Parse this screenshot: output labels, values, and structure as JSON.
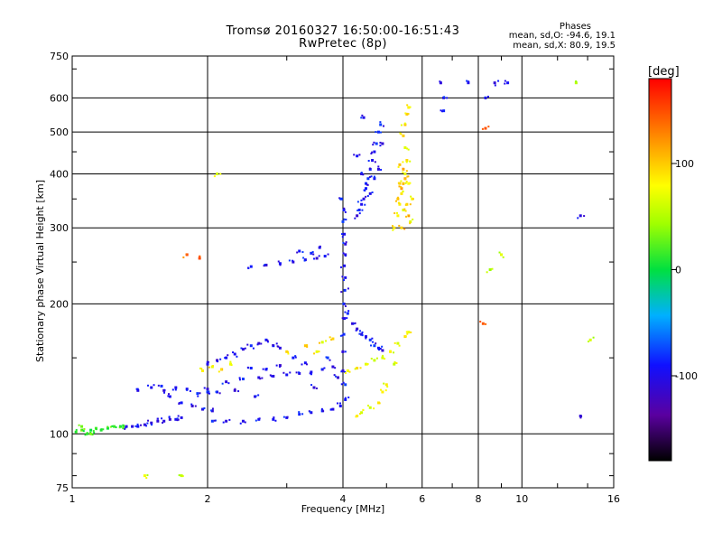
{
  "header": {
    "title": "Tromsø 20160327 16:50:00-16:51:43",
    "subtitle": "RwPretec (8p)"
  },
  "phase_stats": {
    "title": "Phases",
    "line1": "mean, sd,O: -94.6, 19.1",
    "line2": "mean, sd,X:  80.9, 19.5"
  },
  "colorbar": {
    "unit": "[deg]",
    "ticks": [
      "100",
      "0",
      "-100"
    ],
    "tick_values": [
      100,
      0,
      -100
    ],
    "range": [
      -180,
      180
    ]
  },
  "chart_data": {
    "type": "scatter",
    "title": "Tromsø 20160327 16:50:00-16:51:43",
    "subtitle": "RwPretec (8p)",
    "xlabel": "Frequency [MHz]",
    "ylabel": "Stationary phase Virtual Height [km]",
    "x_scale": "log",
    "y_scale": "log",
    "xlim": [
      1,
      16
    ],
    "ylim": [
      75,
      750
    ],
    "x_ticks": [
      "1",
      "2",
      "4",
      "6",
      "8",
      "10",
      "16"
    ],
    "x_tick_values": [
      1,
      2,
      4,
      6,
      8,
      10,
      16
    ],
    "y_ticks": [
      "750",
      "600",
      "500",
      "400",
      "300",
      "200",
      "100",
      "75"
    ],
    "y_tick_values": [
      750,
      600,
      500,
      400,
      300,
      200,
      100,
      75
    ],
    "grid": true,
    "color_encoding": "phase [deg]",
    "series": [
      {
        "points": [
          [
            1.02,
            101
          ],
          [
            1.05,
            102
          ],
          [
            1.08,
            100
          ],
          [
            1.1,
            102
          ],
          [
            1.13,
            103
          ],
          [
            1.16,
            102
          ],
          [
            1.2,
            103
          ],
          [
            1.24,
            104
          ],
          [
            1.28,
            104
          ],
          [
            1.3,
            104
          ],
          [
            1.05,
            104
          ],
          [
            1.1,
            100
          ]
        ],
        "phase": 20
      },
      {
        "points": [
          [
            1.32,
            104
          ],
          [
            1.36,
            104
          ],
          [
            1.4,
            104
          ],
          [
            1.45,
            105
          ],
          [
            1.5,
            106
          ],
          [
            1.55,
            107
          ],
          [
            1.6,
            107
          ],
          [
            1.65,
            108
          ],
          [
            1.7,
            108
          ],
          [
            1.75,
            109
          ]
        ],
        "phase": -95
      },
      {
        "points": [
          [
            1.6,
            126
          ],
          [
            1.7,
            128
          ],
          [
            1.8,
            127
          ],
          [
            1.9,
            124
          ],
          [
            2.0,
            125
          ],
          [
            2.1,
            125
          ],
          [
            1.75,
            118
          ],
          [
            1.85,
            116
          ],
          [
            1.95,
            114
          ],
          [
            2.05,
            113
          ],
          [
            1.65,
            122
          ],
          [
            1.58,
            129
          ],
          [
            1.5,
            128
          ],
          [
            1.4,
            126
          ]
        ],
        "phase": -95
      },
      {
        "points": [
          [
            2.05,
            107
          ],
          [
            2.2,
            107
          ],
          [
            2.4,
            107
          ],
          [
            2.6,
            108
          ],
          [
            2.8,
            108
          ],
          [
            3.0,
            109
          ],
          [
            3.2,
            111
          ],
          [
            3.4,
            112
          ],
          [
            3.6,
            113
          ],
          [
            3.8,
            114
          ],
          [
            3.95,
            116
          ]
        ],
        "phase": -95
      },
      {
        "points": [
          [
            2.0,
            127
          ],
          [
            2.2,
            132
          ],
          [
            2.4,
            134
          ],
          [
            2.6,
            135
          ],
          [
            2.8,
            136
          ],
          [
            3.0,
            137
          ],
          [
            3.2,
            138
          ],
          [
            3.4,
            139
          ],
          [
            3.6,
            141
          ],
          [
            3.8,
            143
          ],
          [
            2.5,
            142
          ],
          [
            2.9,
            144
          ],
          [
            3.3,
            146
          ],
          [
            3.7,
            150
          ],
          [
            3.1,
            150
          ],
          [
            2.7,
            141
          ],
          [
            2.3,
            126
          ],
          [
            2.55,
            122
          ],
          [
            3.45,
            128
          ],
          [
            3.9,
            135
          ]
        ],
        "phase": -95
      },
      {
        "points": [
          [
            2.0,
            145
          ],
          [
            2.1,
            148
          ],
          [
            2.2,
            150
          ],
          [
            2.3,
            153
          ],
          [
            2.4,
            157
          ],
          [
            2.5,
            160
          ],
          [
            2.6,
            162
          ],
          [
            2.7,
            165
          ],
          [
            2.8,
            160
          ],
          [
            2.9,
            158
          ]
        ],
        "phase": -100
      },
      {
        "points": [
          [
            1.95,
            140
          ],
          [
            2.05,
            143
          ],
          [
            2.15,
            141
          ],
          [
            2.25,
            145
          ],
          [
            3.0,
            155
          ],
          [
            3.3,
            160
          ],
          [
            3.6,
            163
          ],
          [
            3.8,
            166
          ],
          [
            3.5,
            155
          ]
        ],
        "phase": 85
      },
      {
        "points": [
          [
            2.5,
            244
          ],
          [
            2.7,
            246
          ],
          [
            2.9,
            248
          ],
          [
            3.1,
            250
          ],
          [
            3.3,
            253
          ],
          [
            3.5,
            255
          ],
          [
            3.65,
            258
          ],
          [
            3.4,
            262
          ],
          [
            3.2,
            265
          ],
          [
            3.55,
            270
          ]
        ],
        "phase": -95
      },
      {
        "points": [
          [
            4.0,
            140
          ],
          [
            4.0,
            155
          ],
          [
            4.02,
            170
          ],
          [
            4.03,
            185
          ],
          [
            4.02,
            200
          ],
          [
            4.04,
            215
          ],
          [
            4.05,
            230
          ],
          [
            4.03,
            245
          ],
          [
            4.05,
            260
          ],
          [
            4.05,
            275
          ],
          [
            4.03,
            290
          ],
          [
            4.0,
            310
          ],
          [
            4.02,
            330
          ],
          [
            3.97,
            350
          ],
          [
            4.05,
            130
          ],
          [
            4.05,
            120
          ],
          [
            4.1,
            190
          ],
          [
            4.2,
            180
          ],
          [
            4.3,
            175
          ],
          [
            4.4,
            170
          ],
          [
            4.5,
            168
          ],
          [
            4.6,
            165
          ],
          [
            4.7,
            160
          ],
          [
            4.8,
            158
          ],
          [
            4.9,
            156
          ]
        ],
        "phase": -95
      },
      {
        "points": [
          [
            4.3,
            320
          ],
          [
            4.35,
            330
          ],
          [
            4.4,
            340
          ],
          [
            4.45,
            350
          ],
          [
            4.5,
            370
          ],
          [
            4.55,
            390
          ],
          [
            4.6,
            410
          ],
          [
            4.65,
            430
          ],
          [
            4.7,
            450
          ],
          [
            4.75,
            470
          ],
          [
            4.8,
            500
          ],
          [
            4.85,
            520
          ],
          [
            4.4,
            400
          ],
          [
            4.5,
            380
          ],
          [
            4.6,
            360
          ],
          [
            4.7,
            390
          ],
          [
            4.8,
            410
          ],
          [
            4.3,
            440
          ],
          [
            4.45,
            540
          ],
          [
            4.9,
            470
          ]
        ],
        "phase": -95
      },
      {
        "points": [
          [
            4.1,
            140
          ],
          [
            4.3,
            142
          ],
          [
            4.5,
            145
          ],
          [
            4.7,
            148
          ],
          [
            4.9,
            150
          ],
          [
            5.1,
            155
          ],
          [
            5.3,
            162
          ],
          [
            5.5,
            168
          ],
          [
            5.6,
            172
          ],
          [
            4.3,
            110
          ],
          [
            4.4,
            112
          ],
          [
            4.6,
            115
          ],
          [
            4.8,
            118
          ],
          [
            4.9,
            125
          ],
          [
            5.0,
            130
          ],
          [
            5.2,
            145
          ]
        ],
        "phase": 75
      },
      {
        "points": [
          [
            5.2,
            300
          ],
          [
            5.3,
            320
          ],
          [
            5.35,
            340
          ],
          [
            5.4,
            360
          ],
          [
            5.45,
            380
          ],
          [
            5.5,
            400
          ],
          [
            5.55,
            430
          ],
          [
            5.5,
            460
          ],
          [
            5.45,
            490
          ],
          [
            5.5,
            520
          ],
          [
            5.55,
            550
          ],
          [
            5.6,
            570
          ],
          [
            5.45,
            330
          ],
          [
            5.6,
            380
          ],
          [
            5.65,
            310
          ],
          [
            5.35,
            420
          ],
          [
            5.7,
            350
          ]
        ],
        "phase": 85
      },
      {
        "points": [
          [
            5.3,
            350
          ],
          [
            5.4,
            370
          ],
          [
            5.5,
            390
          ],
          [
            5.45,
            410
          ],
          [
            5.55,
            340
          ],
          [
            5.6,
            320
          ],
          [
            5.4,
            300
          ],
          [
            5.35,
            380
          ]
        ],
        "phase": 110
      },
      {
        "points": [
          [
            6.6,
            650
          ],
          [
            6.7,
            600
          ],
          [
            6.7,
            560
          ],
          [
            7.6,
            650
          ],
          [
            8.7,
            650
          ],
          [
            8.3,
            600
          ],
          [
            9.3,
            650
          ],
          [
            13.5,
            320
          ],
          [
            13.5,
            110
          ]
        ],
        "phase": -95
      },
      {
        "points": [
          [
            8.3,
            510
          ],
          [
            8.2,
            180
          ],
          [
            1.8,
            260
          ],
          [
            1.92,
            255
          ]
        ],
        "phase": 140
      },
      {
        "points": [
          [
            13.2,
            650
          ],
          [
            14.2,
            165
          ],
          [
            9.0,
            260
          ],
          [
            8.5,
            240
          ],
          [
            2.1,
            400
          ],
          [
            1.75,
            80
          ],
          [
            1.45,
            80
          ]
        ],
        "phase": 60
      }
    ]
  }
}
